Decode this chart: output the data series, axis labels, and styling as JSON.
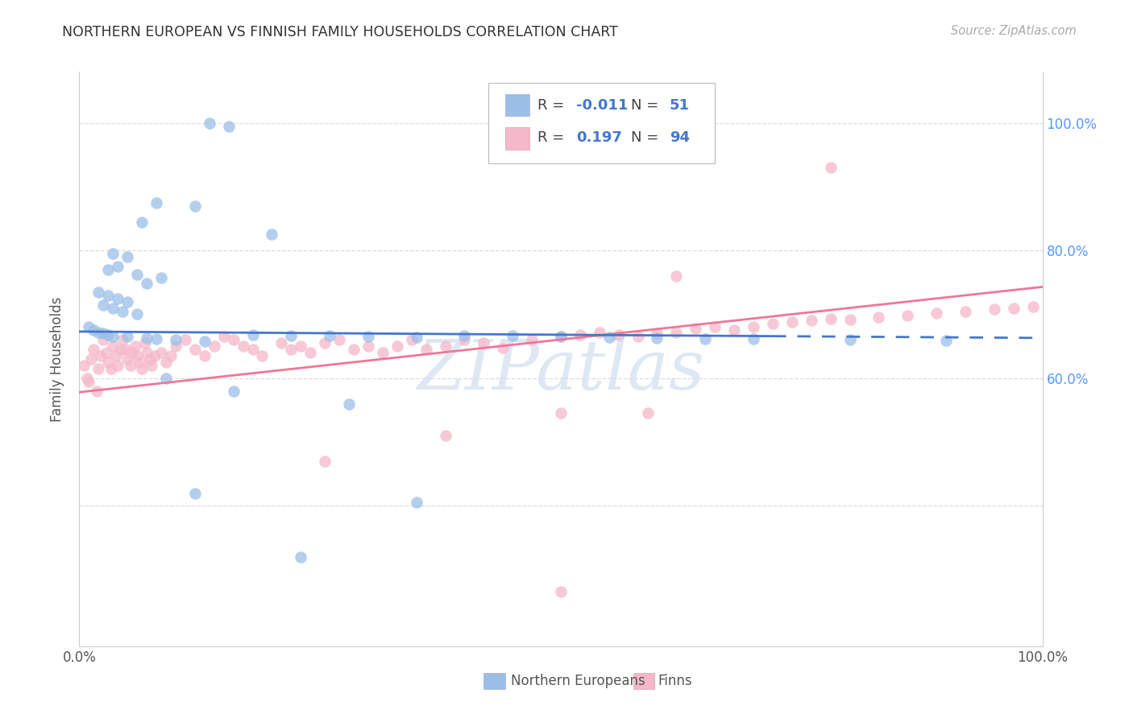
{
  "title": "NORTHERN EUROPEAN VS FINNISH FAMILY HOUSEHOLDS CORRELATION CHART",
  "source": "Source: ZipAtlas.com",
  "ylabel": "Family Households",
  "xlim": [
    0.0,
    1.0
  ],
  "ylim": [
    0.18,
    1.08
  ],
  "xtick_vals": [
    0.0,
    1.0
  ],
  "xtick_labels": [
    "0.0%",
    "100.0%"
  ],
  "ytick_vals": [
    0.6,
    0.8,
    1.0
  ],
  "ytick_labels": [
    "60.0%",
    "80.0%",
    "100.0%"
  ],
  "grid_vals": [
    0.6,
    0.8,
    1.0
  ],
  "extra_grid_vals": [
    0.4
  ],
  "background_color": "#ffffff",
  "grid_color": "#dddddd",
  "blue_scatter_color": "#9BBFE8",
  "pink_scatter_color": "#F5B8C8",
  "blue_line_color": "#4477CC",
  "pink_line_color": "#EE7799",
  "title_color": "#333333",
  "source_color": "#aaaaaa",
  "watermark_text": "ZIPatlas",
  "watermark_color": "#d0dff0",
  "right_axis_color": "#5599FF",
  "legend_r1_val": "-0.011",
  "legend_n1_val": "51",
  "legend_r2_val": "0.197",
  "legend_n2_val": "94",
  "bottom_legend_1": "Northern Europeans",
  "bottom_legend_2": "Finns",
  "ne_R": -0.011,
  "ne_N": 51,
  "fi_R": 0.197,
  "fi_N": 94
}
